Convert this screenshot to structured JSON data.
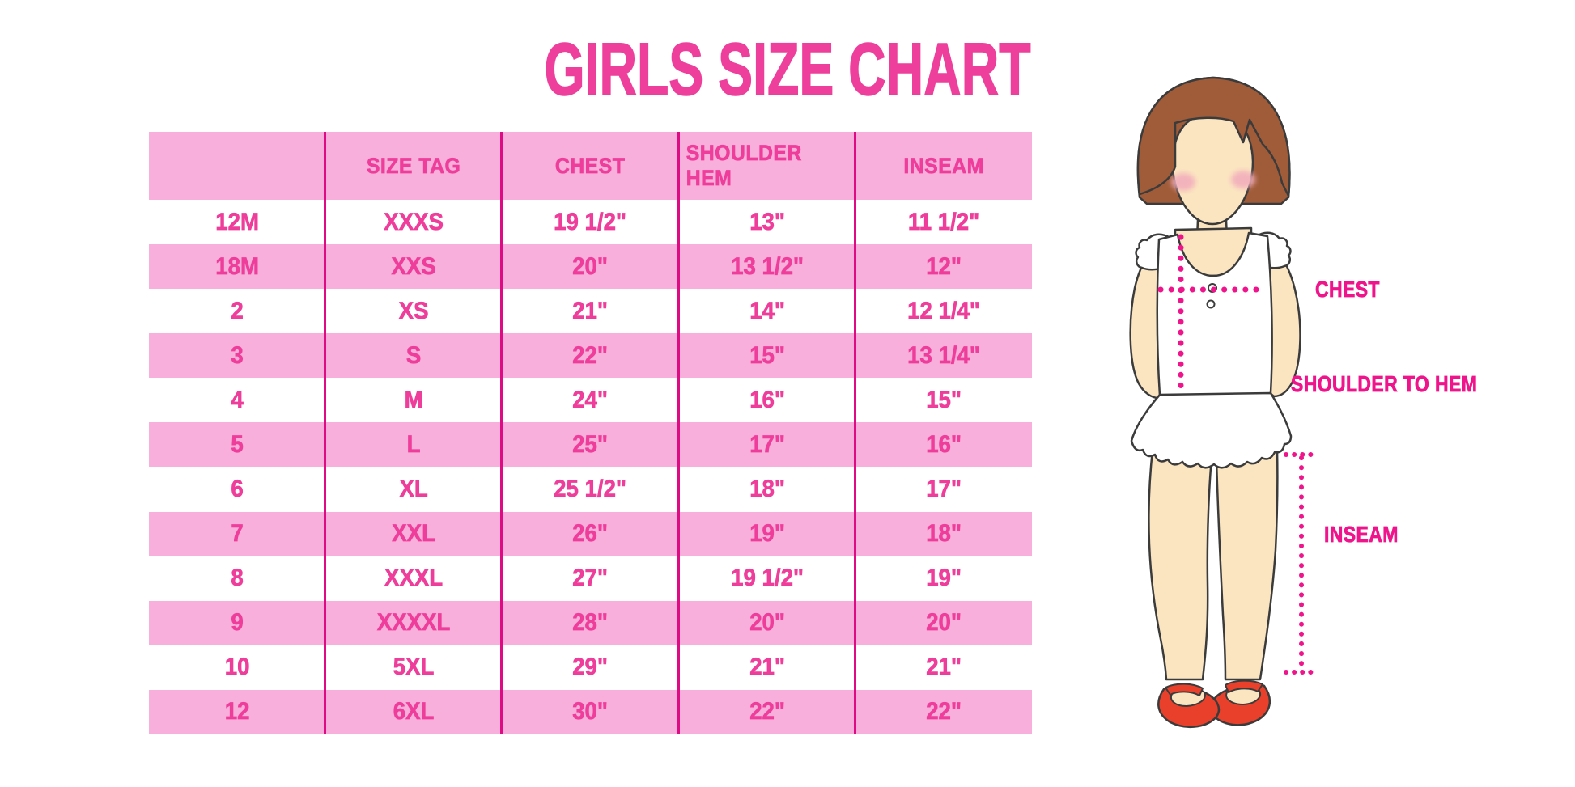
{
  "title": "GIRLS SIZE CHART",
  "colors": {
    "title_pink": "#ED3F9B",
    "table_row_pink": "#F9AFDB",
    "table_text_pink": "#EE3D9A",
    "divider_magenta": "#DF0B84",
    "label_magenta": "#F0148C",
    "hair_brown": "#A05B38",
    "skin": "#FBE5C0",
    "shoe_red": "#E8402A"
  },
  "chart_data": {
    "type": "table",
    "title": "GIRLS SIZE CHART",
    "columns": [
      "",
      "SIZE TAG",
      "CHEST",
      "SHOULDER HEM",
      "INSEAM"
    ],
    "rows": [
      [
        "12M",
        "XXXS",
        "19 1/2\"",
        "13\"",
        "11 1/2\""
      ],
      [
        "18M",
        "XXS",
        "20\"",
        "13 1/2\"",
        "12\""
      ],
      [
        "2",
        "XS",
        "21\"",
        "14\"",
        "12 1/4\""
      ],
      [
        "3",
        "S",
        "22\"",
        "15\"",
        "13 1/4\""
      ],
      [
        "4",
        "M",
        "24\"",
        "16\"",
        "15\""
      ],
      [
        "5",
        "L",
        "25\"",
        "17\"",
        "16\""
      ],
      [
        "6",
        "XL",
        "25 1/2\"",
        "18\"",
        "17\""
      ],
      [
        "7",
        "XXL",
        "26\"",
        "19\"",
        "18\""
      ],
      [
        "8",
        "XXXL",
        "27\"",
        "19 1/2\"",
        "19\""
      ],
      [
        "9",
        "XXXXL",
        "28\"",
        "20\"",
        "20\""
      ],
      [
        "10",
        "5XL",
        "29\"",
        "21\"",
        "21\""
      ],
      [
        "12",
        "6XL",
        "30\"",
        "22\"",
        "22\""
      ]
    ],
    "row_stripe_pattern": "white/pink alternating, header pink",
    "annotations": [
      "CHEST",
      "SHOULDER TO HEM",
      "INSEAM"
    ]
  },
  "figure": {
    "labels": {
      "chest": "CHEST",
      "shoulder_to_hem": "SHOULDER TO HEM",
      "inseam": "INSEAM"
    }
  }
}
